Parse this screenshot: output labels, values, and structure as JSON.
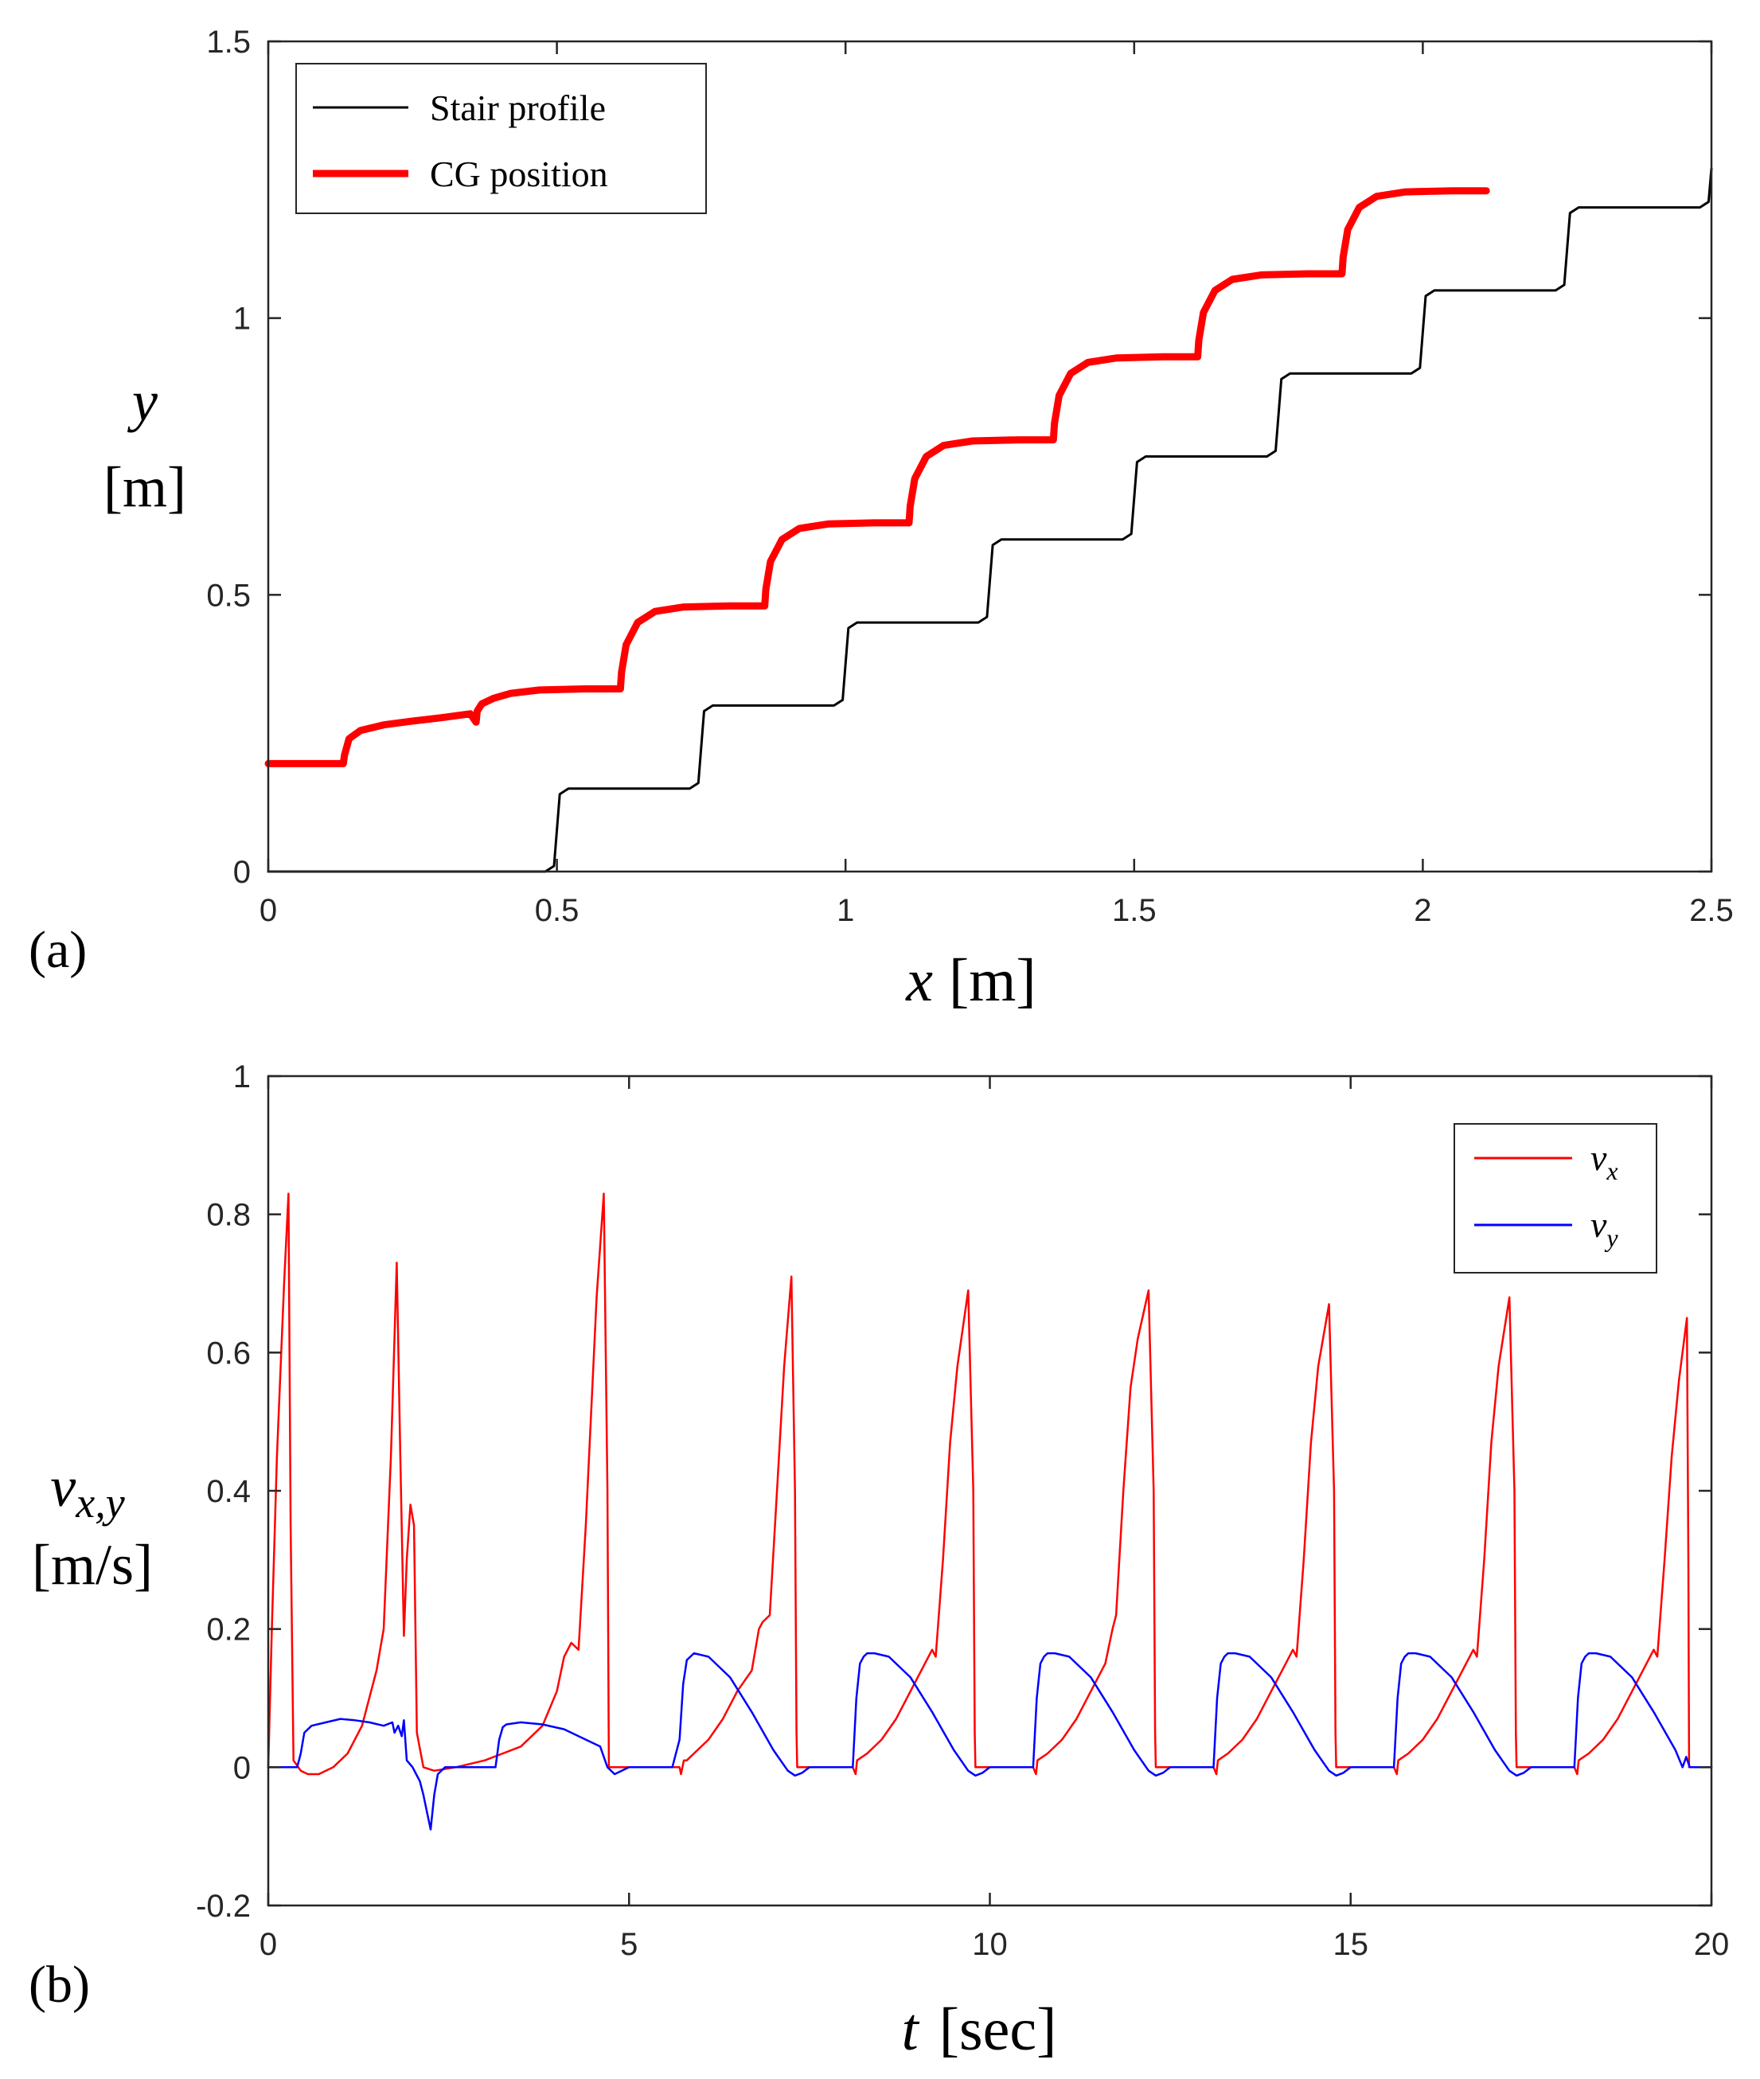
{
  "chart_data": [
    {
      "type": "line",
      "panel_label": "(a)",
      "title": "",
      "xlabel": {
        "var": "x",
        "unit": "[m]"
      },
      "ylabel": {
        "var": "y",
        "unit": "[m]"
      },
      "xlim": [
        0,
        2.5
      ],
      "ylim": [
        0,
        1.5
      ],
      "xticks": [
        0,
        0.5,
        1,
        1.5,
        2,
        2.5
      ],
      "xtick_labels": [
        "0",
        "0.5",
        "1",
        "1.5",
        "2",
        "2.5"
      ],
      "yticks": [
        0,
        0.5,
        1,
        1.5
      ],
      "ytick_labels": [
        "0",
        "0.5",
        "1",
        "1.5"
      ],
      "grid": false,
      "legend_position": "top-left",
      "series": [
        {
          "name": "Stair profile",
          "color": "#000000",
          "x": [
            0,
            0.48,
            0.495,
            0.5,
            0.505,
            0.52,
            0.73,
            0.745,
            0.75,
            0.755,
            0.77,
            0.98,
            0.995,
            1.0,
            1.005,
            1.02,
            1.23,
            1.245,
            1.25,
            1.255,
            1.27,
            1.48,
            1.495,
            1.5,
            1.505,
            1.52,
            1.73,
            1.745,
            1.75,
            1.755,
            1.77,
            1.98,
            1.995,
            2.0,
            2.005,
            2.02,
            2.23,
            2.245,
            2.25,
            2.255,
            2.27,
            2.48,
            2.495,
            2.5
          ],
          "y": [
            0,
            0,
            0.01,
            0.075,
            0.14,
            0.15,
            0.15,
            0.16,
            0.225,
            0.29,
            0.3,
            0.3,
            0.31,
            0.375,
            0.44,
            0.45,
            0.45,
            0.46,
            0.525,
            0.59,
            0.6,
            0.6,
            0.61,
            0.675,
            0.74,
            0.75,
            0.75,
            0.76,
            0.825,
            0.89,
            0.9,
            0.9,
            0.91,
            0.975,
            1.04,
            1.05,
            1.05,
            1.06,
            1.125,
            1.19,
            1.2,
            1.2,
            1.21,
            1.27
          ]
        },
        {
          "name": "CG position",
          "color": "#ff0000",
          "x": [
            0,
            0.13,
            0.132,
            0.14,
            0.16,
            0.2,
            0.25,
            0.3,
            0.35,
            0.36,
            0.362,
            0.37,
            0.39,
            0.42,
            0.47,
            0.55,
            0.61,
            0.612,
            0.62,
            0.64,
            0.67,
            0.72,
            0.8,
            0.86,
            0.862,
            0.87,
            0.89,
            0.92,
            0.97,
            1.05,
            1.11,
            1.112,
            1.12,
            1.14,
            1.17,
            1.22,
            1.3,
            1.36,
            1.362,
            1.37,
            1.39,
            1.42,
            1.47,
            1.55,
            1.61,
            1.612,
            1.62,
            1.64,
            1.67,
            1.72,
            1.8,
            1.86,
            1.862,
            1.87,
            1.89,
            1.92,
            1.97,
            2.05,
            2.11
          ],
          "y": [
            0.195,
            0.195,
            0.21,
            0.24,
            0.255,
            0.265,
            0.272,
            0.278,
            0.285,
            0.27,
            0.29,
            0.303,
            0.313,
            0.322,
            0.328,
            0.33,
            0.33,
            0.36,
            0.41,
            0.45,
            0.47,
            0.478,
            0.48,
            0.48,
            0.51,
            0.56,
            0.6,
            0.62,
            0.628,
            0.63,
            0.63,
            0.66,
            0.71,
            0.75,
            0.77,
            0.778,
            0.78,
            0.78,
            0.81,
            0.86,
            0.9,
            0.92,
            0.928,
            0.93,
            0.93,
            0.96,
            1.01,
            1.05,
            1.07,
            1.078,
            1.08,
            1.08,
            1.11,
            1.16,
            1.2,
            1.22,
            1.228,
            1.23,
            1.23
          ]
        }
      ]
    },
    {
      "type": "line",
      "panel_label": "(b)",
      "title": "",
      "xlabel": {
        "var": "t",
        "unit": "[sec]"
      },
      "ylabel": {
        "var": "v",
        "sub": "x,y",
        "unit": "[m/s]"
      },
      "xlim": [
        0,
        20
      ],
      "ylim": [
        -0.2,
        1
      ],
      "xticks": [
        0,
        5,
        10,
        15,
        20
      ],
      "xtick_labels": [
        "0",
        "5",
        "10",
        "15",
        "20"
      ],
      "yticks": [
        -0.2,
        0,
        0.2,
        0.4,
        0.6,
        0.8,
        1
      ],
      "ytick_labels": [
        "-0.2",
        "0",
        "0.2",
        "0.4",
        "0.6",
        "0.8",
        "1"
      ],
      "grid": false,
      "legend_position": "top-right",
      "series": [
        {
          "name": "v",
          "sub": "x",
          "color": "#ff0000",
          "x": [
            0,
            0.05,
            0.12,
            0.22,
            0.28,
            0.31,
            0.35,
            0.45,
            0.55,
            0.7,
            0.9,
            1.1,
            1.3,
            1.5,
            1.6,
            1.7,
            1.78,
            1.83,
            1.88,
            1.92,
            1.97,
            2.02,
            2.06,
            2.15,
            2.3,
            2.6,
            3.0,
            3.5,
            3.8,
            4.0,
            4.1,
            4.2,
            4.3,
            4.4,
            4.55,
            4.65,
            4.7,
            4.72,
            5.0,
            5.5,
            5.7,
            5.72,
            5.76,
            5.8,
            5.9,
            6.1,
            6.3,
            6.5,
            6.7,
            6.8,
            6.85,
            6.95,
            7.05,
            7.15,
            7.25,
            7.3,
            7.32,
            7.33,
            8.0,
            8.1,
            8.14,
            8.16,
            8.3,
            8.5,
            8.7,
            8.9,
            9.1,
            9.2,
            9.25,
            9.35,
            9.45,
            9.55,
            9.7,
            9.77,
            9.79,
            9.8,
            10.5,
            10.6,
            10.64,
            10.66,
            10.8,
            11.0,
            11.2,
            11.4,
            11.6,
            11.7,
            11.75,
            11.85,
            11.95,
            12.05,
            12.2,
            12.27,
            12.29,
            12.3,
            13.0,
            13.1,
            13.14,
            13.16,
            13.3,
            13.5,
            13.7,
            13.9,
            14.1,
            14.2,
            14.25,
            14.35,
            14.45,
            14.55,
            14.7,
            14.77,
            14.79,
            14.8,
            15.5,
            15.6,
            15.64,
            15.66,
            15.8,
            16.0,
            16.2,
            16.4,
            16.6,
            16.7,
            16.75,
            16.85,
            16.95,
            17.05,
            17.2,
            17.27,
            17.29,
            17.3,
            18.0,
            18.1,
            18.14,
            18.16,
            18.3,
            18.5,
            18.7,
            18.9,
            19.1,
            19.2,
            19.25,
            19.35,
            19.45,
            19.55,
            19.66,
            19.68,
            19.69,
            20.0
          ],
          "y": [
            0.0,
            0.2,
            0.45,
            0.7,
            0.83,
            0.35,
            0.01,
            -0.005,
            -0.01,
            -0.01,
            0.0,
            0.02,
            0.06,
            0.14,
            0.2,
            0.45,
            0.73,
            0.45,
            0.19,
            0.3,
            0.38,
            0.35,
            0.05,
            0.0,
            -0.005,
            0.0,
            0.01,
            0.03,
            0.06,
            0.11,
            0.16,
            0.18,
            0.17,
            0.35,
            0.68,
            0.83,
            0.4,
            0.0,
            0.0,
            0.0,
            0.0,
            -0.01,
            0.01,
            0.01,
            0.02,
            0.04,
            0.07,
            0.11,
            0.14,
            0.2,
            0.21,
            0.22,
            0.4,
            0.58,
            0.71,
            0.4,
            0.05,
            0.0,
            0.0,
            0.0,
            -0.01,
            0.01,
            0.02,
            0.04,
            0.07,
            0.11,
            0.15,
            0.17,
            0.16,
            0.3,
            0.47,
            0.58,
            0.69,
            0.4,
            0.05,
            0.0,
            0.0,
            0.0,
            -0.01,
            0.01,
            0.02,
            0.04,
            0.07,
            0.11,
            0.15,
            0.2,
            0.22,
            0.4,
            0.55,
            0.62,
            0.69,
            0.4,
            0.05,
            0.0,
            0.0,
            0.0,
            -0.01,
            0.01,
            0.02,
            0.04,
            0.07,
            0.11,
            0.15,
            0.17,
            0.16,
            0.3,
            0.47,
            0.58,
            0.67,
            0.4,
            0.05,
            0.0,
            0.0,
            0.0,
            -0.01,
            0.01,
            0.02,
            0.04,
            0.07,
            0.11,
            0.15,
            0.17,
            0.16,
            0.3,
            0.47,
            0.58,
            0.68,
            0.4,
            0.05,
            0.0,
            0.0,
            0.0,
            -0.01,
            0.01,
            0.02,
            0.04,
            0.07,
            0.11,
            0.15,
            0.17,
            0.16,
            0.3,
            0.45,
            0.56,
            0.65,
            0.3,
            0.0,
            0.0
          ]
        },
        {
          "name": "v",
          "sub": "y",
          "color": "#0000ff",
          "x": [
            0,
            0.4,
            0.45,
            0.5,
            0.6,
            0.8,
            1.0,
            1.2,
            1.4,
            1.6,
            1.72,
            1.75,
            1.8,
            1.85,
            1.88,
            1.92,
            1.96,
            2.0,
            2.05,
            2.1,
            2.15,
            2.2,
            2.25,
            2.3,
            2.35,
            2.45,
            2.6,
            3.0,
            3.15,
            3.2,
            3.25,
            3.3,
            3.5,
            3.8,
            4.1,
            4.4,
            4.6,
            4.7,
            4.8,
            5.0,
            5.6,
            5.7,
            5.75,
            5.8,
            5.85,
            5.9,
            6.1,
            6.4,
            6.7,
            7.0,
            7.2,
            7.3,
            7.4,
            7.5,
            8.1,
            8.15,
            8.2,
            8.25,
            8.3,
            8.4,
            8.6,
            8.9,
            9.2,
            9.5,
            9.7,
            9.8,
            9.9,
            10.0,
            10.6,
            10.65,
            10.7,
            10.75,
            10.8,
            10.9,
            11.1,
            11.4,
            11.7,
            12.0,
            12.2,
            12.3,
            12.4,
            12.5,
            13.1,
            13.15,
            13.2,
            13.25,
            13.3,
            13.4,
            13.6,
            13.9,
            14.2,
            14.5,
            14.7,
            14.8,
            14.9,
            15.0,
            15.6,
            15.65,
            15.7,
            15.75,
            15.8,
            15.9,
            16.1,
            16.4,
            16.7,
            17.0,
            17.2,
            17.3,
            17.4,
            17.5,
            18.1,
            18.15,
            18.2,
            18.25,
            18.3,
            18.4,
            18.6,
            18.9,
            19.2,
            19.5,
            19.6,
            19.65,
            19.7,
            19.8,
            20.0
          ],
          "y": [
            0.0,
            0.0,
            0.02,
            0.05,
            0.06,
            0.065,
            0.07,
            0.068,
            0.065,
            0.06,
            0.065,
            0.05,
            0.06,
            0.045,
            0.068,
            0.01,
            0.005,
            0.0,
            -0.01,
            -0.02,
            -0.04,
            -0.065,
            -0.09,
            -0.04,
            -0.01,
            0.0,
            0.0,
            0.0,
            0.0,
            0.04,
            0.058,
            0.062,
            0.065,
            0.062,
            0.055,
            0.04,
            0.03,
            0.0,
            -0.01,
            0.0,
            0.0,
            0.04,
            0.12,
            0.155,
            0.16,
            0.165,
            0.16,
            0.13,
            0.08,
            0.025,
            -0.005,
            -0.012,
            -0.008,
            0.0,
            0.0,
            0.1,
            0.15,
            0.16,
            0.165,
            0.165,
            0.16,
            0.13,
            0.08,
            0.025,
            -0.005,
            -0.012,
            -0.008,
            0.0,
            0.0,
            0.1,
            0.15,
            0.16,
            0.165,
            0.165,
            0.16,
            0.13,
            0.08,
            0.025,
            -0.005,
            -0.012,
            -0.008,
            0.0,
            0.0,
            0.1,
            0.15,
            0.16,
            0.165,
            0.165,
            0.16,
            0.13,
            0.08,
            0.025,
            -0.005,
            -0.012,
            -0.008,
            0.0,
            0.0,
            0.1,
            0.15,
            0.16,
            0.165,
            0.165,
            0.16,
            0.13,
            0.08,
            0.025,
            -0.005,
            -0.012,
            -0.008,
            0.0,
            0.0,
            0.1,
            0.15,
            0.16,
            0.165,
            0.165,
            0.16,
            0.13,
            0.08,
            0.025,
            0.0,
            0.015,
            0.0,
            0.0,
            0.0
          ]
        }
      ]
    }
  ]
}
